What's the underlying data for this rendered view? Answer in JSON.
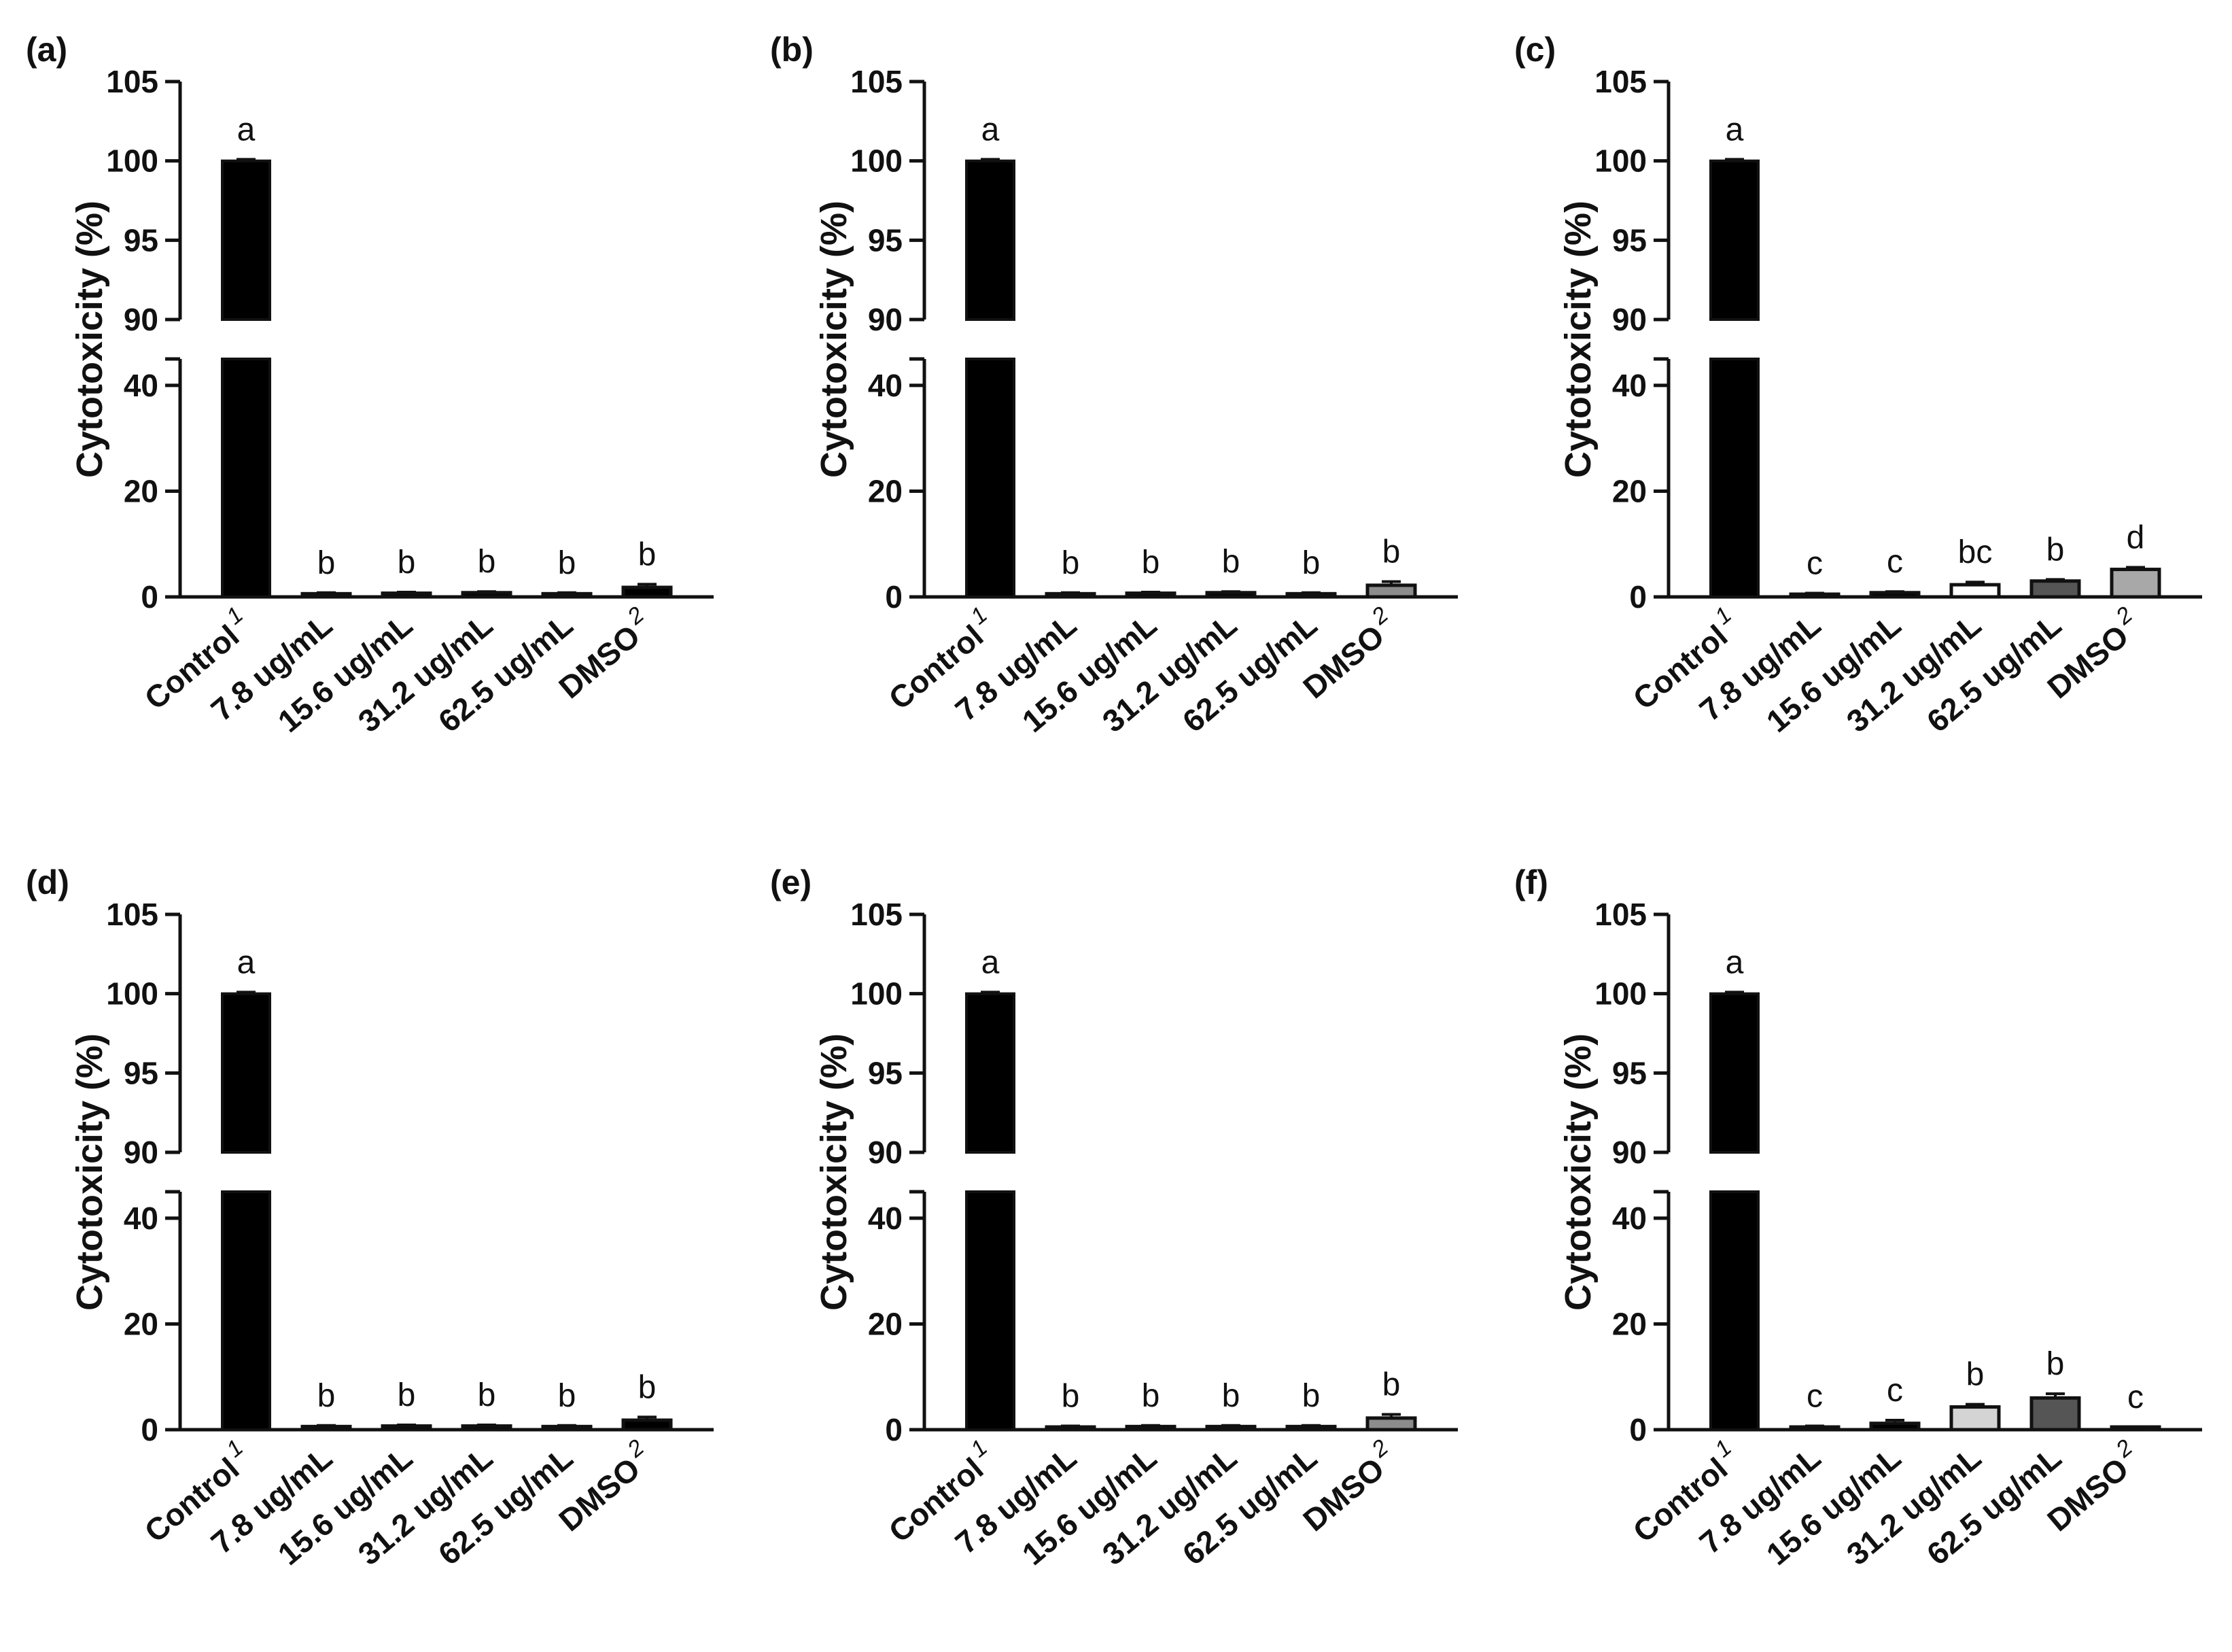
{
  "chart_data": [
    {
      "type": "bar",
      "panel_label": "(a)",
      "ylabel": "Cytotoxicity (%)",
      "categories": [
        "Control",
        "7.8 ug/mL",
        "15.6 ug/mL",
        "31.2 ug/mL",
        "62.5 ug/mL",
        "DMSO"
      ],
      "category_superscripts": [
        "1",
        "",
        "",
        "",
        "",
        "2"
      ],
      "values": [
        100,
        0.6,
        0.7,
        0.8,
        0.6,
        1.8
      ],
      "errors": [
        0.1,
        0.2,
        0.2,
        0.2,
        0.2,
        0.6
      ],
      "significance": [
        "a",
        "b",
        "b",
        "b",
        "b",
        "b"
      ],
      "bar_colors": [
        "#000000",
        "#000000",
        "#000000",
        "#000000",
        "#000000",
        "#000000"
      ],
      "y_axis_break": {
        "lower_range": [
          0,
          45
        ],
        "upper_range": [
          90,
          105
        ]
      },
      "yticks_lower": [
        0,
        20,
        40
      ],
      "yticks_upper": [
        90,
        95,
        100,
        105
      ]
    },
    {
      "type": "bar",
      "panel_label": "(b)",
      "ylabel": "Cytotoxicity (%)",
      "categories": [
        "Control",
        "7.8 ug/mL",
        "15.6 ug/mL",
        "31.2 ug/mL",
        "62.5 ug/mL",
        "DMSO"
      ],
      "category_superscripts": [
        "1",
        "",
        "",
        "",
        "",
        "2"
      ],
      "values": [
        100,
        0.6,
        0.7,
        0.8,
        0.6,
        2.2
      ],
      "errors": [
        0.1,
        0.2,
        0.2,
        0.2,
        0.2,
        0.7
      ],
      "significance": [
        "a",
        "b",
        "b",
        "b",
        "b",
        "b"
      ],
      "bar_colors": [
        "#000000",
        "#000000",
        "#000000",
        "#000000",
        "#000000",
        "#8c8c8c"
      ],
      "y_axis_break": {
        "lower_range": [
          0,
          45
        ],
        "upper_range": [
          90,
          105
        ]
      },
      "yticks_lower": [
        0,
        20,
        40
      ],
      "yticks_upper": [
        90,
        95,
        100,
        105
      ]
    },
    {
      "type": "bar",
      "panel_label": "(c)",
      "ylabel": "Cytotoxicity (%)",
      "categories": [
        "Control",
        "7.8 ug/mL",
        "15.6 ug/mL",
        "31.2 ug/mL",
        "62.5 ug/mL",
        "DMSO"
      ],
      "category_superscripts": [
        "1",
        "",
        "",
        "",
        "",
        "2"
      ],
      "values": [
        100,
        0.5,
        0.8,
        2.3,
        3.0,
        5.2
      ],
      "errors": [
        0.1,
        0.2,
        0.2,
        0.5,
        0.3,
        0.4
      ],
      "significance": [
        "a",
        "c",
        "c",
        "bc",
        "b",
        "d"
      ],
      "bar_colors": [
        "#000000",
        "#000000",
        "#000000",
        "#ffffff",
        "#555555",
        "#a8a8a8"
      ],
      "y_axis_break": {
        "lower_range": [
          0,
          45
        ],
        "upper_range": [
          90,
          105
        ]
      },
      "yticks_lower": [
        0,
        20,
        40
      ],
      "yticks_upper": [
        90,
        95,
        100,
        105
      ]
    },
    {
      "type": "bar",
      "panel_label": "(d)",
      "ylabel": "Cytotoxicity (%)",
      "categories": [
        "Control",
        "7.8 ug/mL",
        "15.6 ug/mL",
        "31.2 ug/mL",
        "62.5 ug/mL",
        "DMSO"
      ],
      "category_superscripts": [
        "1",
        "",
        "",
        "",
        "",
        "2"
      ],
      "values": [
        100,
        0.6,
        0.7,
        0.7,
        0.6,
        1.8
      ],
      "errors": [
        0.1,
        0.2,
        0.2,
        0.2,
        0.2,
        0.6
      ],
      "significance": [
        "a",
        "b",
        "b",
        "b",
        "b",
        "b"
      ],
      "bar_colors": [
        "#000000",
        "#000000",
        "#000000",
        "#000000",
        "#000000",
        "#000000"
      ],
      "y_axis_break": {
        "lower_range": [
          0,
          45
        ],
        "upper_range": [
          90,
          105
        ]
      },
      "yticks_lower": [
        0,
        20,
        40
      ],
      "yticks_upper": [
        90,
        95,
        100,
        105
      ]
    },
    {
      "type": "bar",
      "panel_label": "(e)",
      "ylabel": "Cytotoxicity (%)",
      "categories": [
        "Control",
        "7.8 ug/mL",
        "15.6 ug/mL",
        "31.2 ug/mL",
        "62.5 ug/mL",
        "DMSO"
      ],
      "category_superscripts": [
        "1",
        "",
        "",
        "",
        "",
        "2"
      ],
      "values": [
        100,
        0.5,
        0.6,
        0.6,
        0.6,
        2.2
      ],
      "errors": [
        0.1,
        0.2,
        0.2,
        0.2,
        0.2,
        0.7
      ],
      "significance": [
        "a",
        "b",
        "b",
        "b",
        "b",
        "b"
      ],
      "bar_colors": [
        "#000000",
        "#000000",
        "#000000",
        "#000000",
        "#000000",
        "#8c8c8c"
      ],
      "y_axis_break": {
        "lower_range": [
          0,
          45
        ],
        "upper_range": [
          90,
          105
        ]
      },
      "yticks_lower": [
        0,
        20,
        40
      ],
      "yticks_upper": [
        90,
        95,
        100,
        105
      ]
    },
    {
      "type": "bar",
      "panel_label": "(f)",
      "ylabel": "Cytotoxicity (%)",
      "categories": [
        "Control",
        "7.8 ug/mL",
        "15.6 ug/mL",
        "31.2 ug/mL",
        "62.5 ug/mL",
        "DMSO"
      ],
      "category_superscripts": [
        "1",
        "",
        "",
        "",
        "",
        "2"
      ],
      "values": [
        100,
        0.5,
        1.2,
        4.3,
        6.0,
        0.3
      ],
      "errors": [
        0.1,
        0.2,
        0.6,
        0.5,
        0.8,
        0.2
      ],
      "significance": [
        "a",
        "c",
        "c",
        "b",
        "b",
        "c"
      ],
      "bar_colors": [
        "#000000",
        "#000000",
        "#000000",
        "#d4d4d4",
        "#555555",
        "#000000"
      ],
      "y_axis_break": {
        "lower_range": [
          0,
          45
        ],
        "upper_range": [
          90,
          105
        ]
      },
      "yticks_lower": [
        0,
        20,
        40
      ],
      "yticks_upper": [
        90,
        95,
        100,
        105
      ]
    }
  ]
}
